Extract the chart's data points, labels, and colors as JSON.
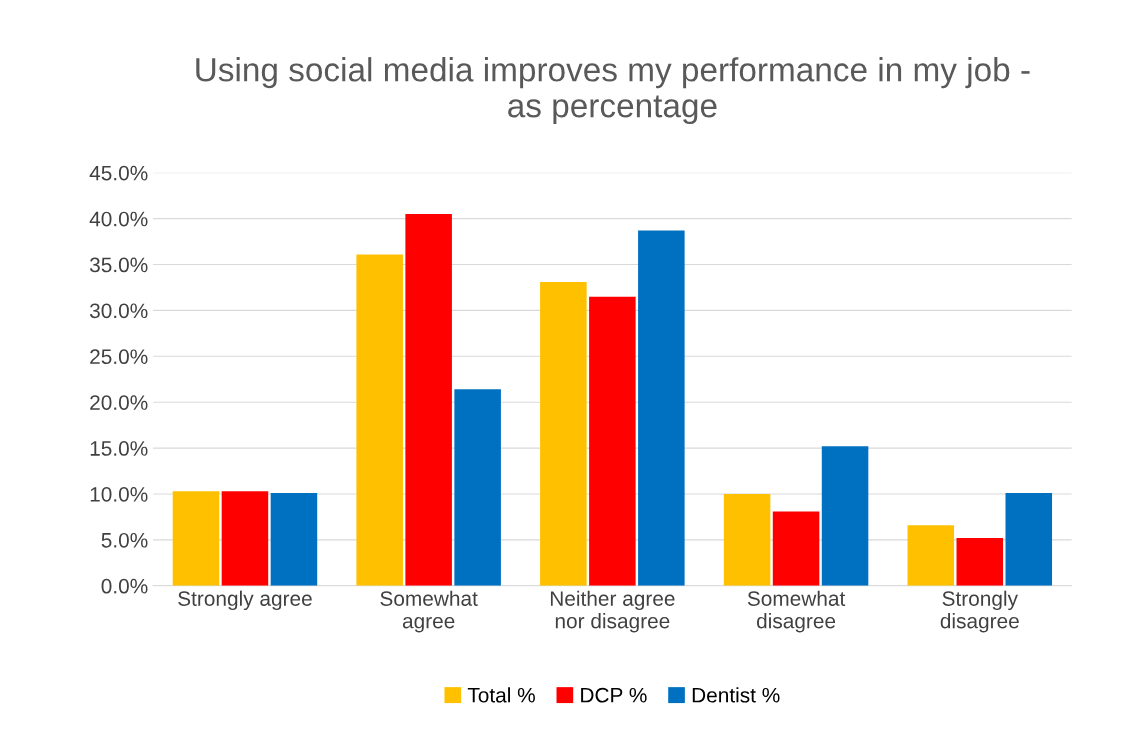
{
  "chart_data": {
    "type": "bar",
    "title": "Using social media improves my performance in my job -\nas percentage",
    "categories": [
      "Strongly agree",
      "Somewhat\nagree",
      "Neither agree\nnor disagree",
      "Somewhat\ndisagree",
      "Strongly\ndisagree"
    ],
    "series": [
      {
        "name": "Total %",
        "color": "#ffc000",
        "values": [
          10.3,
          36.1,
          33.1,
          10.0,
          6.6
        ]
      },
      {
        "name": "DCP %",
        "color": "#ff0000",
        "values": [
          10.3,
          40.5,
          31.5,
          8.1,
          5.2
        ]
      },
      {
        "name": "Dentist %",
        "color": "#0070c0",
        "values": [
          10.1,
          21.4,
          38.7,
          15.2,
          10.1
        ]
      }
    ],
    "ylim": [
      0,
      45
    ],
    "yticks": [
      {
        "value": 0,
        "label": "0.0%"
      },
      {
        "value": 5,
        "label": "5.0%"
      },
      {
        "value": 10,
        "label": "10.0%"
      },
      {
        "value": 15,
        "label": "15.0%"
      },
      {
        "value": 20,
        "label": "20.0%"
      },
      {
        "value": 25,
        "label": "25.0%"
      },
      {
        "value": 30,
        "label": "30.0%"
      },
      {
        "value": 35,
        "label": "35.0%"
      },
      {
        "value": 40,
        "label": "40.0%"
      },
      {
        "value": 45,
        "label": "45.0%"
      }
    ],
    "grid": "y",
    "legend": "bottom"
  }
}
